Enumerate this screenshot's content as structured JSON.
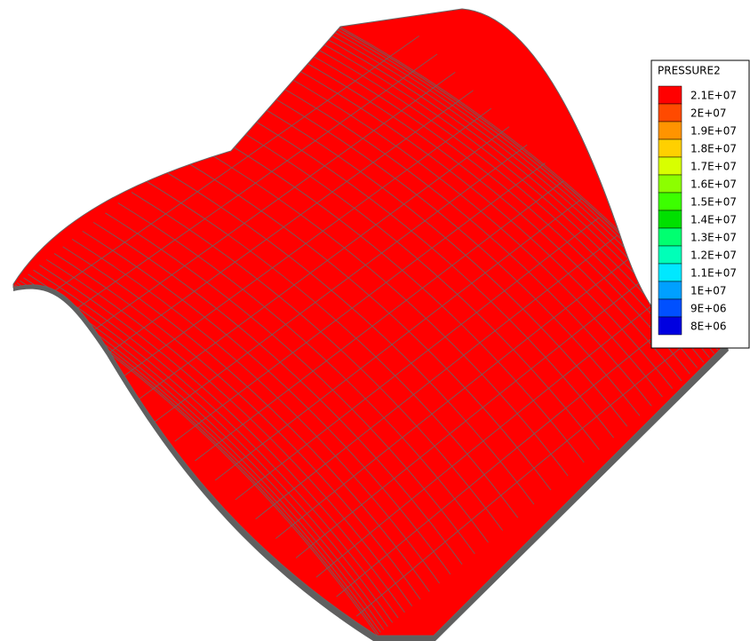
{
  "legend": {
    "title": "PRESSURE2",
    "entries": [
      {
        "label": "2.1E+07",
        "color": "#ff0000"
      },
      {
        "label": "2E+07",
        "color": "#ff4a00"
      },
      {
        "label": "1.9E+07",
        "color": "#ff9400"
      },
      {
        "label": "1.8E+07",
        "color": "#ffd000"
      },
      {
        "label": "1.7E+07",
        "color": "#d8ff00"
      },
      {
        "label": "1.6E+07",
        "color": "#8cff00"
      },
      {
        "label": "1.5E+07",
        "color": "#3cff00"
      },
      {
        "label": "1.4E+07",
        "color": "#00e000"
      },
      {
        "label": "1.3E+07",
        "color": "#00ff70"
      },
      {
        "label": "1.2E+07",
        "color": "#00ffb8"
      },
      {
        "label": "1.1E+07",
        "color": "#00e8ff"
      },
      {
        "label": "1E+07",
        "color": "#00a0ff"
      },
      {
        "label": "9E+06",
        "color": "#0050ff"
      },
      {
        "label": "8E+06",
        "color": "#0000e0"
      }
    ]
  }
}
